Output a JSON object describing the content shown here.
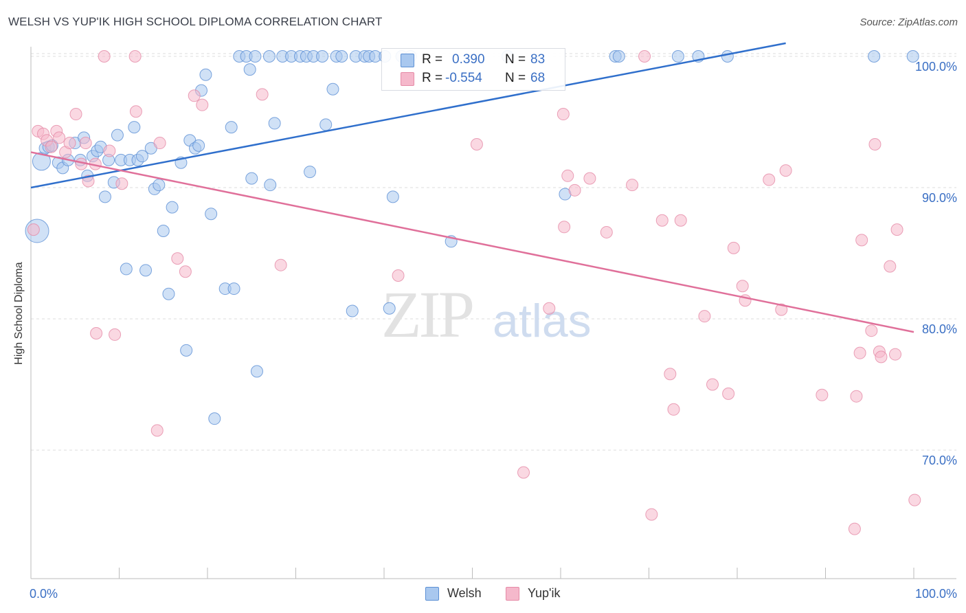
{
  "header": {
    "title": "WELSH VS YUP'IK HIGH SCHOOL DIPLOMA CORRELATION CHART",
    "source": "Source: ZipAtlas.com"
  },
  "watermark": {
    "zip": "ZIP",
    "atlas": "atlas"
  },
  "stats": {
    "welsh": {
      "r_label": "R =",
      "r_value": "0.390",
      "n_label": "N =",
      "n_value": "83"
    },
    "yupik": {
      "r_label": "R =",
      "r_value": "-0.554",
      "n_label": "N =",
      "n_value": "68"
    }
  },
  "legend": {
    "welsh": "Welsh",
    "yupik": "Yup'ik"
  },
  "colors": {
    "welsh_fill": "#a9c8ef",
    "welsh_stroke": "#5b8fd4",
    "welsh_line": "#2f6fcc",
    "yupik_fill": "#f5b8cb",
    "yupik_stroke": "#e58aa6",
    "yupik_line": "#e0709a",
    "tick_label": "#3a6fc4",
    "grid": "#dddddd"
  },
  "chart_data": {
    "type": "scatter",
    "title": "WELSH VS YUP'IK HIGH SCHOOL DIPLOMA CORRELATION CHART",
    "xlabel": "",
    "ylabel": "High School Diploma",
    "xlim": [
      0,
      100
    ],
    "ylim": [
      60,
      101
    ],
    "x_ticks": [
      "0.0%",
      "100.0%"
    ],
    "y_ticks": [
      {
        "value": 70,
        "label": "70.0%"
      },
      {
        "value": 80,
        "label": "80.0%"
      },
      {
        "value": 90,
        "label": "90.0%"
      },
      {
        "value": 100,
        "label": "100.0%"
      }
    ],
    "grid": true,
    "legend_position": "bottom-center",
    "series": [
      {
        "name": "Welsh",
        "r": 0.39,
        "n": 83,
        "trend": {
          "x": [
            0,
            85.5
          ],
          "y": [
            90.0,
            101.0
          ]
        },
        "points": [
          [
            1.2,
            92.0,
            2
          ],
          [
            0.7,
            86.7,
            3
          ],
          [
            1.6,
            93.0,
            1
          ],
          [
            2.0,
            93.1,
            1
          ],
          [
            2.4,
            93.2,
            1
          ],
          [
            3.1,
            91.9,
            1
          ],
          [
            3.6,
            91.5,
            1
          ],
          [
            4.2,
            92.1,
            1
          ],
          [
            5.0,
            93.4,
            1
          ],
          [
            5.6,
            92.1,
            1
          ],
          [
            6.0,
            93.8,
            1
          ],
          [
            6.4,
            90.9,
            1
          ],
          [
            7.0,
            92.4,
            1
          ],
          [
            7.5,
            92.8,
            1
          ],
          [
            7.9,
            93.1,
            1
          ],
          [
            8.4,
            89.3,
            1
          ],
          [
            8.8,
            92.1,
            1
          ],
          [
            9.4,
            90.4,
            1
          ],
          [
            9.8,
            94.0,
            1
          ],
          [
            10.2,
            92.1,
            1
          ],
          [
            10.8,
            83.8,
            1
          ],
          [
            11.2,
            92.1,
            1
          ],
          [
            11.7,
            94.6,
            1
          ],
          [
            12.1,
            92.1,
            1
          ],
          [
            12.6,
            92.4,
            1
          ],
          [
            13.0,
            83.7,
            1
          ],
          [
            13.6,
            93.0,
            1
          ],
          [
            14.0,
            89.9,
            1
          ],
          [
            14.5,
            90.2,
            1
          ],
          [
            15.0,
            86.7,
            1
          ],
          [
            15.6,
            81.9,
            1
          ],
          [
            16.0,
            88.5,
            1
          ],
          [
            17.0,
            91.9,
            1
          ],
          [
            17.6,
            77.6,
            1
          ],
          [
            18.0,
            93.6,
            1
          ],
          [
            18.6,
            93.0,
            1
          ],
          [
            19.0,
            93.2,
            1
          ],
          [
            19.3,
            97.4,
            1
          ],
          [
            19.8,
            98.6,
            1
          ],
          [
            20.4,
            88.0,
            1
          ],
          [
            20.8,
            72.4,
            1
          ],
          [
            22.0,
            82.3,
            1
          ],
          [
            23.0,
            82.3,
            1
          ],
          [
            22.7,
            94.6,
            1
          ],
          [
            23.6,
            100.0,
            1
          ],
          [
            24.4,
            100.0,
            1
          ],
          [
            24.8,
            99.0,
            1
          ],
          [
            25.0,
            90.7,
            1
          ],
          [
            25.4,
            100.0,
            1
          ],
          [
            25.6,
            76.0,
            1
          ],
          [
            27.0,
            100.0,
            1
          ],
          [
            27.1,
            90.2,
            1
          ],
          [
            27.6,
            94.9,
            1
          ],
          [
            28.5,
            100.0,
            1
          ],
          [
            29.5,
            100.0,
            1
          ],
          [
            31.6,
            91.2,
            1
          ],
          [
            30.5,
            100.0,
            1
          ],
          [
            31.2,
            100.0,
            1
          ],
          [
            32.0,
            100.0,
            1
          ],
          [
            33.0,
            100.0,
            1
          ],
          [
            33.4,
            94.8,
            1
          ],
          [
            34.2,
            97.5,
            1
          ],
          [
            34.6,
            100.0,
            1
          ],
          [
            35.2,
            100.0,
            1
          ],
          [
            36.4,
            80.6,
            1
          ],
          [
            36.8,
            100.0,
            1
          ],
          [
            37.8,
            100.0,
            1
          ],
          [
            38.3,
            100.0,
            1
          ],
          [
            39.0,
            100.0,
            1
          ],
          [
            40.1,
            100.0,
            1
          ],
          [
            40.6,
            80.8,
            1
          ],
          [
            41.0,
            89.3,
            1
          ],
          [
            42.0,
            100.0,
            1
          ],
          [
            43.0,
            100.0,
            1
          ],
          [
            47.6,
            85.9,
            1
          ],
          [
            54.0,
            100.0,
            1
          ],
          [
            60.5,
            89.5,
            1
          ],
          [
            66.2,
            100.0,
            1
          ],
          [
            66.6,
            100.0,
            1
          ],
          [
            73.3,
            100.0,
            1
          ],
          [
            75.6,
            100.0,
            1
          ],
          [
            78.9,
            100.0,
            1
          ],
          [
            95.5,
            100.0,
            1
          ],
          [
            99.9,
            100.0,
            1
          ]
        ]
      },
      {
        "name": "Yup'ik",
        "r": -0.554,
        "n": 68,
        "trend": {
          "x": [
            0,
            100
          ],
          "y": [
            92.7,
            79.0
          ]
        },
        "points": [
          [
            0.3,
            86.8,
            1
          ],
          [
            0.8,
            94.3,
            1
          ],
          [
            1.4,
            94.1,
            1
          ],
          [
            1.8,
            93.6,
            1
          ],
          [
            2.3,
            93.1,
            1
          ],
          [
            2.9,
            94.3,
            1
          ],
          [
            3.2,
            93.8,
            1
          ],
          [
            3.9,
            92.7,
            1
          ],
          [
            4.4,
            93.4,
            1
          ],
          [
            5.1,
            95.6,
            1
          ],
          [
            5.7,
            91.8,
            1
          ],
          [
            6.2,
            93.4,
            1
          ],
          [
            6.5,
            90.5,
            1
          ],
          [
            7.3,
            91.8,
            1
          ],
          [
            7.4,
            78.9,
            1
          ],
          [
            8.3,
            100.0,
            1
          ],
          [
            8.9,
            92.8,
            1
          ],
          [
            9.5,
            78.8,
            1
          ],
          [
            10.3,
            90.3,
            1
          ],
          [
            11.8,
            100.0,
            1
          ],
          [
            11.9,
            95.8,
            1
          ],
          [
            14.3,
            71.5,
            1
          ],
          [
            14.6,
            93.4,
            1
          ],
          [
            16.6,
            84.6,
            1
          ],
          [
            17.5,
            83.6,
            1
          ],
          [
            18.5,
            97.0,
            1
          ],
          [
            19.4,
            96.3,
            1
          ],
          [
            26.2,
            97.1,
            1
          ],
          [
            28.3,
            84.1,
            1
          ],
          [
            41.6,
            83.3,
            1
          ],
          [
            50.5,
            93.3,
            1
          ],
          [
            55.8,
            68.3,
            1
          ],
          [
            58.7,
            80.8,
            1
          ],
          [
            60.3,
            95.6,
            1
          ],
          [
            60.4,
            87.0,
            1
          ],
          [
            60.8,
            90.9,
            1
          ],
          [
            61.6,
            89.8,
            1
          ],
          [
            63.3,
            90.7,
            1
          ],
          [
            65.2,
            86.6,
            1
          ],
          [
            68.1,
            90.2,
            1
          ],
          [
            69.5,
            100.0,
            1
          ],
          [
            70.3,
            65.1,
            1
          ],
          [
            71.5,
            87.5,
            1
          ],
          [
            72.4,
            75.8,
            1
          ],
          [
            72.8,
            73.1,
            1
          ],
          [
            73.6,
            87.5,
            1
          ],
          [
            76.3,
            80.2,
            1
          ],
          [
            77.2,
            75.0,
            1
          ],
          [
            79.0,
            74.3,
            1
          ],
          [
            79.6,
            85.4,
            1
          ],
          [
            80.6,
            82.5,
            1
          ],
          [
            80.9,
            81.4,
            1
          ],
          [
            83.6,
            90.6,
            1
          ],
          [
            85.0,
            80.7,
            1
          ],
          [
            85.5,
            91.3,
            1
          ],
          [
            89.6,
            74.2,
            1
          ],
          [
            93.3,
            64.0,
            1
          ],
          [
            93.5,
            74.1,
            1
          ],
          [
            93.9,
            77.4,
            1
          ],
          [
            94.1,
            86.0,
            1
          ],
          [
            95.2,
            79.1,
            1
          ],
          [
            95.6,
            93.3,
            1
          ],
          [
            96.1,
            77.5,
            1
          ],
          [
            96.3,
            77.1,
            1
          ],
          [
            97.3,
            84.0,
            1
          ],
          [
            97.9,
            77.3,
            1
          ],
          [
            98.1,
            86.8,
            1
          ],
          [
            100.1,
            66.2,
            1
          ]
        ]
      }
    ]
  }
}
